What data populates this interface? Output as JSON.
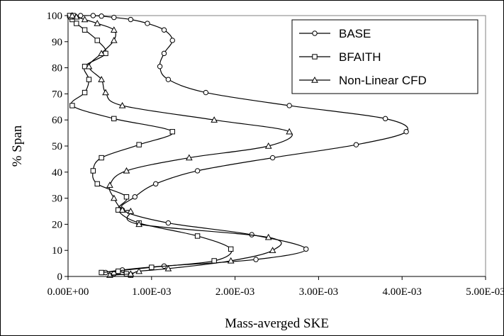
{
  "chart_data": {
    "type": "line",
    "xlabel": "Mass-averged SKE",
    "ylabel": "% Span",
    "xlim": [
      0,
      0.005
    ],
    "ylim": [
      0,
      100
    ],
    "x_ticks": [
      0,
      0.001,
      0.002,
      0.003,
      0.004,
      0.005
    ],
    "x_tick_labels": [
      "0.00E+00",
      "1.00E-03",
      "2.00E-03",
      "3.00E-03",
      "4.00E-03",
      "5.00E-03"
    ],
    "y_ticks": [
      0,
      10,
      20,
      30,
      40,
      50,
      60,
      70,
      80,
      90,
      100
    ],
    "y_tick_labels": [
      "0",
      "10",
      "20",
      "30",
      "40",
      "50",
      "60",
      "70",
      "80",
      "90",
      "100"
    ],
    "grid": false,
    "legend_position": "top-right",
    "series": [
      {
        "name": "BASE",
        "marker": "circle",
        "points": [
          [
            0.00075,
            0.5
          ],
          [
            0.00055,
            1.0
          ],
          [
            0.00045,
            1.5
          ],
          [
            0.00065,
            2.5
          ],
          [
            0.00115,
            4.0
          ],
          [
            0.00225,
            6.5
          ],
          [
            0.00285,
            10.5
          ],
          [
            0.0022,
            16.0
          ],
          [
            0.0012,
            20.5
          ],
          [
            0.00065,
            25.5
          ],
          [
            0.0008,
            30.5
          ],
          [
            0.00105,
            35.5
          ],
          [
            0.00155,
            40.5
          ],
          [
            0.00245,
            45.5
          ],
          [
            0.00345,
            50.5
          ],
          [
            0.00405,
            55.5
          ],
          [
            0.0038,
            60.5
          ],
          [
            0.00265,
            65.5
          ],
          [
            0.00165,
            70.5
          ],
          [
            0.0012,
            75.5
          ],
          [
            0.0011,
            80.5
          ],
          [
            0.00115,
            85.5
          ],
          [
            0.00125,
            90.5
          ],
          [
            0.00115,
            94.5
          ],
          [
            0.00095,
            97.0
          ],
          [
            0.00075,
            98.5
          ],
          [
            0.00055,
            99.3
          ],
          [
            0.0004,
            99.8
          ],
          [
            0.0003,
            100
          ],
          [
            0.00015,
            100
          ],
          [
            5e-05,
            100
          ]
        ]
      },
      {
        "name": "BFAITH",
        "marker": "square",
        "points": [
          [
            0.00075,
            0.5
          ],
          [
            0.0007,
            1.0
          ],
          [
            0.0006,
            2.0
          ],
          [
            0.0004,
            1.5
          ],
          [
            0.001,
            3.5
          ],
          [
            0.00175,
            6.0
          ],
          [
            0.00195,
            10.5
          ],
          [
            0.00155,
            15.5
          ],
          [
            0.00085,
            20.5
          ],
          [
            0.0006,
            25.5
          ],
          [
            0.0007,
            30.5
          ],
          [
            0.00035,
            35.5
          ],
          [
            0.0003,
            40.5
          ],
          [
            0.0004,
            45.5
          ],
          [
            0.00085,
            50.5
          ],
          [
            0.00125,
            55.5
          ],
          [
            0.00055,
            60.5
          ],
          [
            5e-05,
            65.5
          ],
          [
            0.0002,
            70.5
          ],
          [
            0.00025,
            75.5
          ],
          [
            0.0002,
            80.5
          ],
          [
            0.00045,
            85.5
          ],
          [
            0.00035,
            90.5
          ],
          [
            0.0002,
            94.5
          ],
          [
            0.0001,
            97.0
          ],
          [
            5e-05,
            98.5
          ],
          [
            3e-05,
            99.5
          ],
          [
            2e-05,
            100
          ],
          [
            6e-05,
            100
          ]
        ]
      },
      {
        "name": "Non-Linear CFD",
        "marker": "triangle",
        "points": [
          [
            0.0005,
            0.5
          ],
          [
            0.00075,
            1.0
          ],
          [
            0.00085,
            2.0
          ],
          [
            0.0012,
            3.0
          ],
          [
            0.00195,
            6.0
          ],
          [
            0.00245,
            10.0
          ],
          [
            0.0024,
            15.0
          ],
          [
            0.00085,
            20.0
          ],
          [
            0.00075,
            25.0
          ],
          [
            0.00065,
            25.5
          ],
          [
            0.00055,
            30.0
          ],
          [
            0.0005,
            35.0
          ],
          [
            0.0007,
            40.5
          ],
          [
            0.00145,
            45.5
          ],
          [
            0.0024,
            50.0
          ],
          [
            0.00265,
            55.5
          ],
          [
            0.00175,
            60.0
          ],
          [
            0.00065,
            65.5
          ],
          [
            0.00045,
            70.5
          ],
          [
            0.0004,
            75.5
          ],
          [
            0.00025,
            80.5
          ],
          [
            0.0004,
            85.5
          ],
          [
            0.00055,
            90.5
          ],
          [
            0.00055,
            94.5
          ],
          [
            0.00035,
            97.0
          ],
          [
            0.0002,
            98.5
          ],
          [
            0.0001,
            99.5
          ],
          [
            5e-05,
            100
          ]
        ]
      }
    ]
  }
}
